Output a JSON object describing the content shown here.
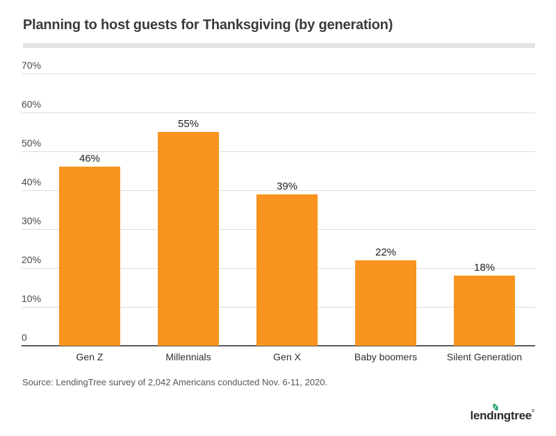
{
  "page": {
    "source": "Source: LendingTree survey of 2,042 Americans conducted Nov. 6-11, 2020.",
    "logo": {
      "text_pre": "lend",
      "text_dotless_i": "ı",
      "text_post": "ngtree",
      "trademark": "®",
      "leaf_icon": "leaf-icon",
      "leaf_color": "#2da86e",
      "text_color": "#2b2b2b"
    },
    "colors": {
      "title_text": "#3a3a3a",
      "divider": "#e3e3e3",
      "gridline": "#dcdcdc",
      "axis_line": "#57585a",
      "tick_text": "#484848",
      "source_text": "#55565a"
    }
  },
  "chart_data": {
    "type": "bar",
    "title": "Planning to host guests for Thanksgiving (by generation)",
    "categories": [
      "Gen Z",
      "Millennials",
      "Gen X",
      "Baby boomers",
      "Silent Generation"
    ],
    "values": [
      46,
      55,
      39,
      22,
      18
    ],
    "value_labels": [
      "46%",
      "55%",
      "39%",
      "22%",
      "18%"
    ],
    "xlabel": "",
    "ylabel": "",
    "ylim": [
      0,
      70
    ],
    "yticks": [
      {
        "value": 70,
        "label": "70%"
      },
      {
        "value": 60,
        "label": "60%"
      },
      {
        "value": 50,
        "label": "50%"
      },
      {
        "value": 40,
        "label": "40%"
      },
      {
        "value": 30,
        "label": "30%"
      },
      {
        "value": 20,
        "label": "20%"
      },
      {
        "value": 10,
        "label": "10%"
      },
      {
        "value": 0,
        "label": "0"
      }
    ],
    "bar_color": "#f8941f",
    "grid": true,
    "legend_position": "none"
  }
}
